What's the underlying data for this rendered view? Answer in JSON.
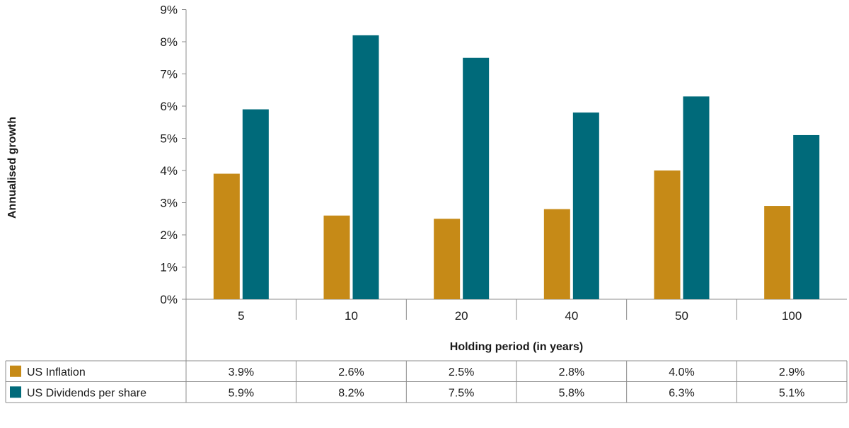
{
  "chart_data": {
    "type": "bar",
    "title": "",
    "xlabel": "Holding period (in years)",
    "ylabel": "Annualised growth",
    "categories": [
      "5",
      "10",
      "20",
      "40",
      "50",
      "100"
    ],
    "ylim": [
      0,
      9
    ],
    "y_ticks": [
      "0%",
      "1%",
      "2%",
      "3%",
      "4%",
      "5%",
      "6%",
      "7%",
      "8%",
      "9%"
    ],
    "grid": false,
    "legend": "data table below chart",
    "series": [
      {
        "name": "US Inflation",
        "color": "#c68a17",
        "values": [
          3.9,
          2.6,
          2.5,
          2.8,
          4.0,
          2.9
        ],
        "labels": [
          "3.9%",
          "2.6%",
          "2.5%",
          "2.8%",
          "4.0%",
          "2.9%"
        ]
      },
      {
        "name": "US Dividends per share",
        "color": "#006a7a",
        "values": [
          5.9,
          8.2,
          7.5,
          5.8,
          6.3,
          5.1
        ],
        "labels": [
          "5.9%",
          "8.2%",
          "7.5%",
          "5.8%",
          "6.3%",
          "5.1%"
        ]
      }
    ]
  }
}
